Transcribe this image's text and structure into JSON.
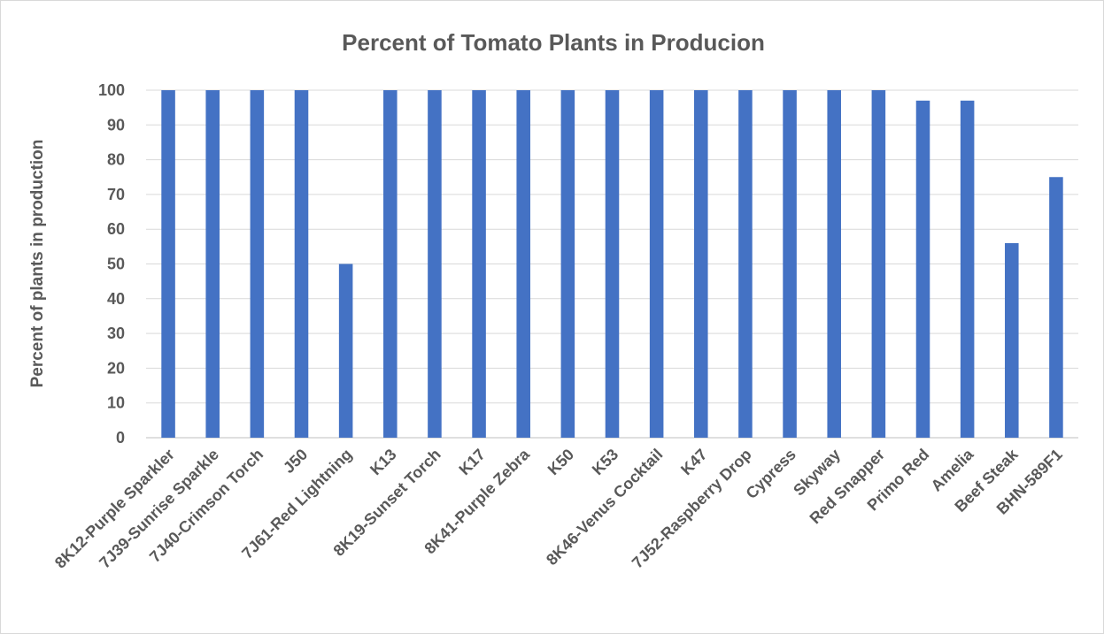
{
  "chart_data": {
    "type": "bar",
    "title": "Percent of Tomato Plants in Producion",
    "xlabel": "",
    "ylabel": "Percent of plants in production",
    "ylim": [
      0,
      100
    ],
    "yticks": [
      0,
      10,
      20,
      30,
      40,
      50,
      60,
      70,
      80,
      90,
      100
    ],
    "grid": true,
    "legend": "none",
    "categories": [
      "8K12-Purple Sparkler",
      "7J39-Sunrise Sparkle",
      "7J40-Crimson Torch",
      "J50",
      "7J61-Red Lightning",
      "K13",
      "8K19-Sunset Torch",
      "K17",
      "8K41-Purple Zebra",
      "K50",
      "K53",
      "8K46-Venus Cocktail",
      "K47",
      "7J52-Raspberry Drop",
      "Cypress",
      "Skyway",
      "Red Snapper",
      "Primo Red",
      "Amelia",
      "Beef Steak",
      "BHN-589F1"
    ],
    "values": [
      100,
      100,
      100,
      100,
      50,
      100,
      100,
      100,
      100,
      100,
      100,
      100,
      100,
      100,
      100,
      100,
      100,
      97,
      97,
      56,
      75
    ],
    "colors": {
      "bar": "#4472c4",
      "text": "#595959",
      "grid": "#d9d9d9"
    }
  }
}
